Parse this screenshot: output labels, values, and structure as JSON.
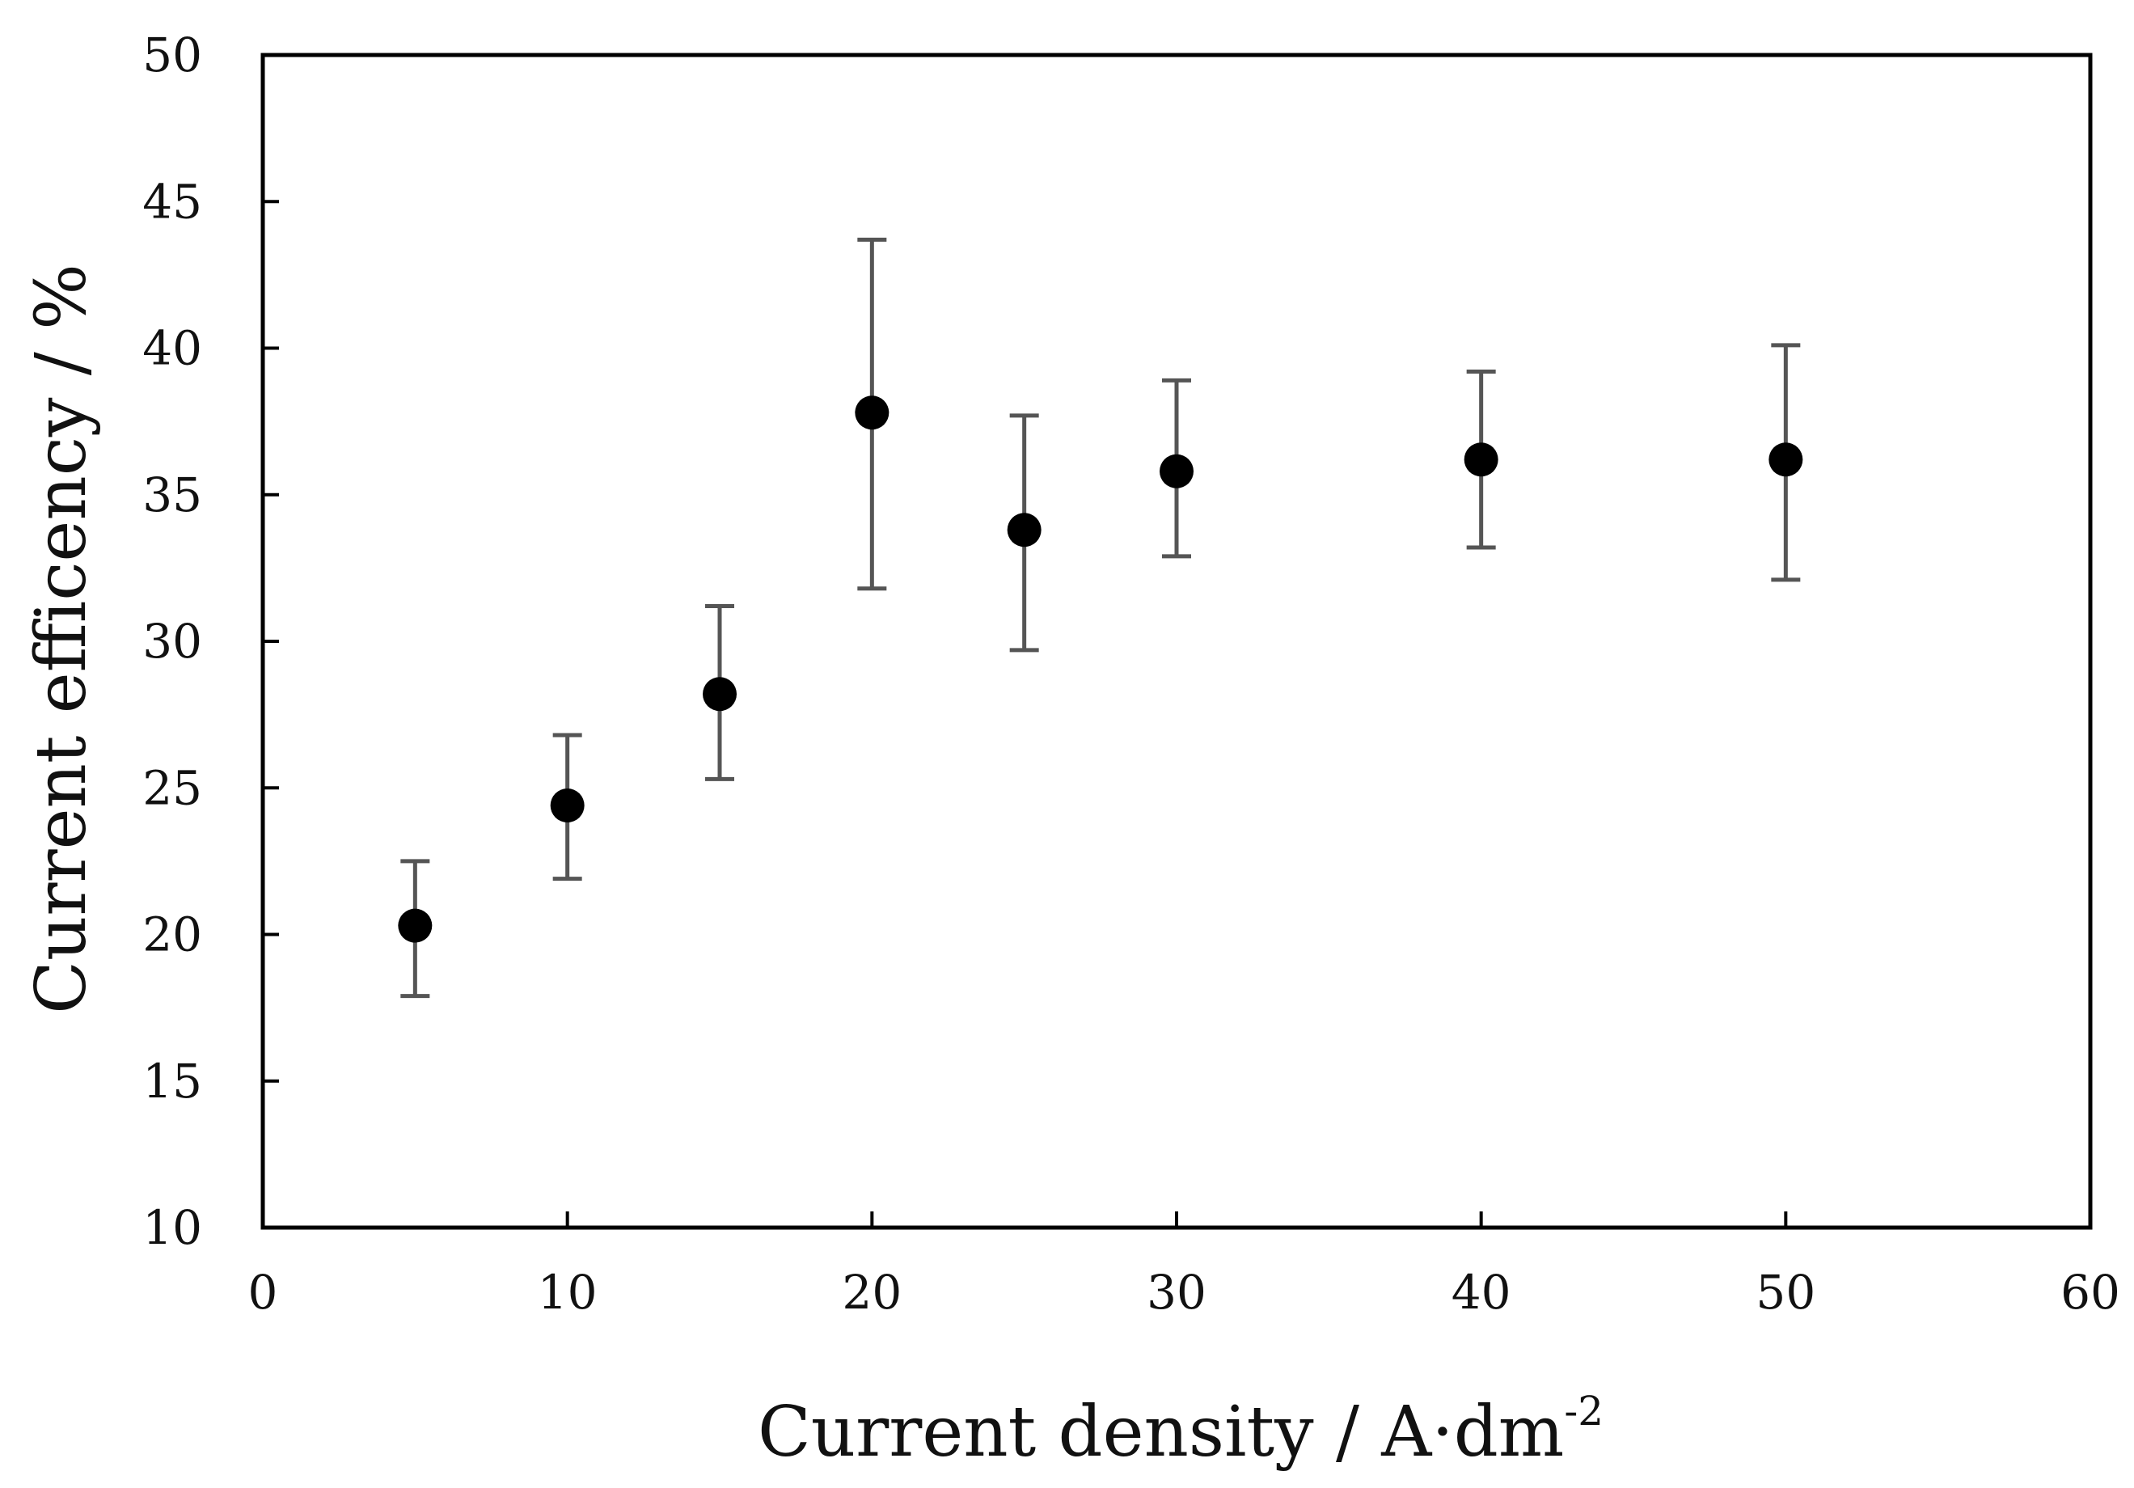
{
  "chart_data": {
    "type": "scatter",
    "xlabel": {
      "main": "Current density / A·dm",
      "superscript": "-2"
    },
    "ylabel": "Current efficency / %",
    "xlim": [
      0,
      60
    ],
    "ylim": [
      10,
      50
    ],
    "xticks": [
      0,
      10,
      20,
      30,
      40,
      50,
      60
    ],
    "yticks": [
      10,
      15,
      20,
      25,
      30,
      35,
      40,
      45,
      50
    ],
    "grid": false,
    "legend": "none",
    "series": [
      {
        "points": [
          {
            "x": 5,
            "y": 20.3,
            "ylow": 17.9,
            "yhigh": 22.5
          },
          {
            "x": 10,
            "y": 24.4,
            "ylow": 21.9,
            "yhigh": 26.8
          },
          {
            "x": 15,
            "y": 28.2,
            "ylow": 25.3,
            "yhigh": 31.2
          },
          {
            "x": 20,
            "y": 37.8,
            "ylow": 31.8,
            "yhigh": 43.7
          },
          {
            "x": 25,
            "y": 33.8,
            "ylow": 29.7,
            "yhigh": 37.7
          },
          {
            "x": 30,
            "y": 35.8,
            "ylow": 32.9,
            "yhigh": 38.9
          },
          {
            "x": 40,
            "y": 36.2,
            "ylow": 33.2,
            "yhigh": 39.2
          },
          {
            "x": 50,
            "y": 36.2,
            "ylow": 32.1,
            "yhigh": 40.1
          }
        ]
      }
    ],
    "colors": {
      "marker": "#000000",
      "errorbar": "#555555",
      "axes": "#000000"
    }
  }
}
